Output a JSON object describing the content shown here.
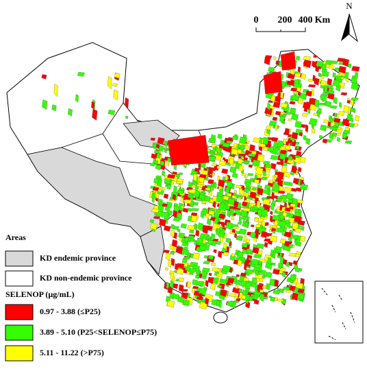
{
  "north": "N",
  "scale_bar": {
    "labels": [
      "0",
      "200",
      "400",
      "Km"
    ]
  },
  "legend": {
    "areas_title": "Areas",
    "areas": [
      {
        "label": "KD endemic province",
        "color": "#d9d9d9"
      },
      {
        "label": "KD non-endemic province",
        "color": "#ffffff"
      }
    ],
    "selenop_title": "SELENOP (µg/mL)",
    "classes": [
      {
        "label": "0.97 - 3.88 (≤P25)",
        "color": "#ff0000"
      },
      {
        "label": "3.89 - 5.10 (P25<SELENOP≤P75)",
        "color": "#33ff00"
      },
      {
        "label": "5.11 - 11.22 (>P75)",
        "color": "#ffff00"
      }
    ]
  }
}
